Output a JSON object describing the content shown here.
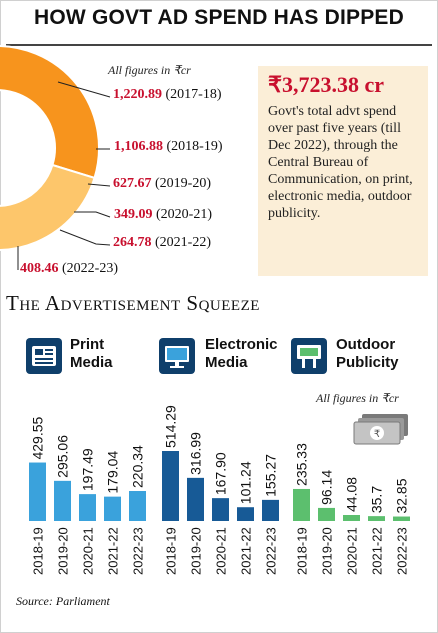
{
  "title": "HOW GOVT AD SPEND HAS DIPPED",
  "donut_note": "All figures in ₹cr",
  "infobox": {
    "amount": "₹3,723.38 cr",
    "text": "Govt's total advt spend over past five years (till Dec 2022), through the Central Bureau of Communication, on print, electronic media, outdoor publicity."
  },
  "section_title": "The Advertisement Squeeze",
  "categories": [
    {
      "line1": "Print",
      "line2": "Media",
      "icon": "newspaper-icon"
    },
    {
      "line1": "Electronic",
      "line2": "Media",
      "icon": "monitor-icon"
    },
    {
      "line1": "Outdoor",
      "line2": "Publicity",
      "icon": "billboard-icon"
    }
  ],
  "bars_note": "All figures in ₹cr",
  "source": "Source: Parliament",
  "colors": {
    "donut": [
      "#f7941d",
      "#fdc66b",
      "#1d9a3e",
      "#86cf8c",
      "#9b5bb0",
      "#d3b5de"
    ],
    "print": "#3aa2dc",
    "electronic": "#175a96",
    "outdoor": "#5cbf6e",
    "accent": "#c8102e",
    "infobox_bg": "#fbeed7",
    "icon_bg": "#0f3f6b"
  },
  "chart_data": [
    {
      "type": "pie",
      "values": [
        {
          "label": "2017-18",
          "value": 1220.89,
          "text": "1,220.89"
        },
        {
          "label": "2018-19",
          "value": 1106.88,
          "text": "1,106.88"
        },
        {
          "label": "2019-20",
          "value": 627.67,
          "text": "627.67"
        },
        {
          "label": "2020-21",
          "value": 349.09,
          "text": "349.09"
        },
        {
          "label": "2021-22",
          "value": 264.78,
          "text": "264.78"
        },
        {
          "label": "2022-23",
          "value": 408.46,
          "text": "408.46"
        }
      ]
    },
    {
      "type": "bar",
      "categories": [
        "2018-19",
        "2019-20",
        "2020-21",
        "2021-22",
        "2022-23"
      ],
      "series": [
        {
          "name": "Print Media",
          "values": [
            429.55,
            295.06,
            197.49,
            179.04,
            220.34
          ],
          "labels": [
            "429.55",
            "295.06",
            "197.49",
            "179.04",
            "220.34"
          ]
        },
        {
          "name": "Electronic Media",
          "values": [
            514.29,
            316.99,
            167.9,
            101.24,
            155.27
          ],
          "labels": [
            "514.29",
            "316.99",
            "167.90",
            "101.24",
            "155.27"
          ]
        },
        {
          "name": "Outdoor Publicity",
          "values": [
            235.33,
            96.14,
            44.08,
            35.7,
            32.85
          ],
          "labels": [
            "235.33",
            "96.14",
            "44.08",
            "35.7",
            "32.85"
          ]
        }
      ]
    }
  ]
}
